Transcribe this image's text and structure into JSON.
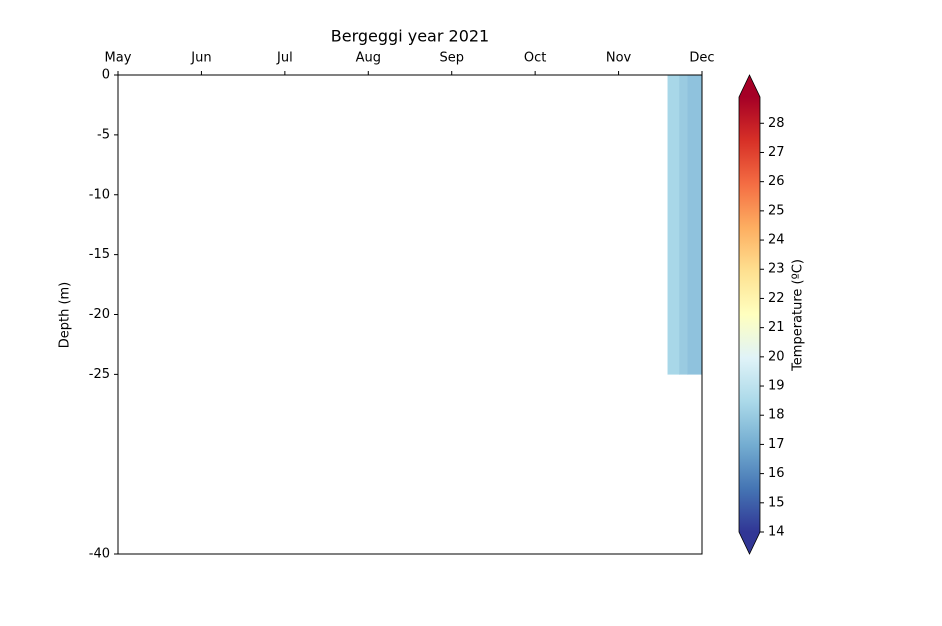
{
  "chart_data": {
    "type": "heatmap",
    "title": "Bergeggi year 2021",
    "ylabel": "Depth (m)",
    "xticks": [
      {
        "value": 0,
        "label": "May"
      },
      {
        "value": 1,
        "label": "Jun"
      },
      {
        "value": 2,
        "label": "Jul"
      },
      {
        "value": 3,
        "label": "Aug"
      },
      {
        "value": 4,
        "label": "Sep"
      },
      {
        "value": 5,
        "label": "Oct"
      },
      {
        "value": 6,
        "label": "Nov"
      },
      {
        "value": 7,
        "label": "Dec"
      }
    ],
    "xlim": [
      0,
      7
    ],
    "ylim": [
      -40,
      0
    ],
    "yticks": [
      -40,
      -25,
      -20,
      -15,
      -10,
      -5,
      0
    ],
    "x_edges": [
      6.59,
      6.73,
      6.83,
      7
    ],
    "y_edges": [
      -25,
      0
    ],
    "z": [
      [
        18.4,
        18.0,
        17.7
      ]
    ],
    "colormap": [
      "#313695",
      "#4575b4",
      "#74add1",
      "#abd9e9",
      "#e0f3f8",
      "#ffffbf",
      "#fee090",
      "#fdae61",
      "#f46d43",
      "#d73027",
      "#a50026"
    ],
    "clim": [
      14,
      28.9
    ],
    "colorbar_label": "Temperature (ºC)",
    "colorbar_ticks": [
      14,
      15,
      16,
      17,
      18,
      19,
      20,
      21,
      22,
      23,
      24,
      25,
      26,
      27,
      28
    ]
  }
}
